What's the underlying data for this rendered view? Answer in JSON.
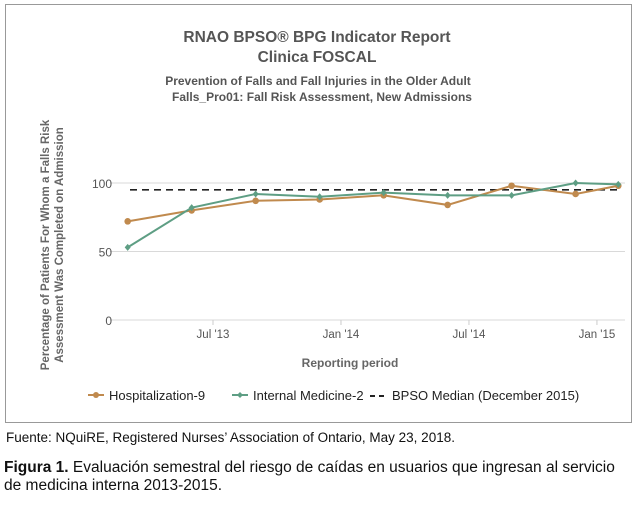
{
  "chart_data": {
    "type": "line",
    "title": "RNAO BPSO® BPG Indicator Report",
    "title_line2": "Clinica FOSCAL",
    "subtitle": "Prevention of Falls and Fall Injuries in the Older Adult",
    "subtitle_line2": "Falls_Pro01: Fall Risk Assessment, New Admissions",
    "xlabel": "Reporting period",
    "ylabel": "Percentage of Patients For Whom a Falls Risk",
    "ylabel_line2": "Assessment Was Completed on Admission",
    "ylim": [
      0,
      100
    ],
    "yticks": [
      "0",
      "50",
      "100"
    ],
    "xticks": [
      {
        "label": "Jul '13",
        "date": "2013-07"
      },
      {
        "label": "Jan '14",
        "date": "2014-01"
      },
      {
        "label": "Jul '14",
        "date": "2014-07"
      },
      {
        "label": "Jan '15",
        "date": "2015-01"
      }
    ],
    "x": [
      "2013-03",
      "2013-06",
      "2013-09",
      "2013-12",
      "2014-03",
      "2014-06",
      "2014-09",
      "2014-12",
      "2015-02"
    ],
    "grid": "horizontal",
    "legend_position": "bottom",
    "series": [
      {
        "name": "Hospitalization-9",
        "color": "#c08a4e",
        "marker": "circle",
        "values": [
          72,
          80,
          87,
          88,
          91,
          84,
          98,
          92,
          98
        ]
      },
      {
        "name": "Internal Medicine-2",
        "color": "#5e9e84",
        "marker": "diamond",
        "values": [
          53,
          82,
          92,
          90,
          93,
          91,
          91,
          100,
          99
        ]
      },
      {
        "name": "BPSO Median (December 2015)",
        "color": "#222222",
        "dashed": true,
        "value": 95
      }
    ]
  },
  "source": "Fuente: NQuiRE, Registered Nurses’ Association of Ontario, May 23, 2018.",
  "figure": {
    "label": "Figura 1.",
    "text": " Evaluación semestral del riesgo de caídas en usuarios que ingresan al servicio de medicina interna 2013-2015."
  }
}
